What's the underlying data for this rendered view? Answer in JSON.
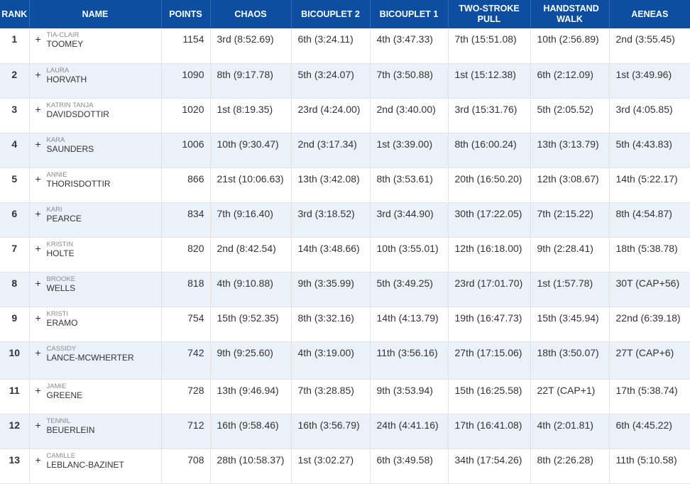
{
  "headers": [
    "RANK",
    "NAME",
    "POINTS",
    "CHAOS",
    "BICOUPLET 2",
    "BICOUPLET 1",
    "TWO-STROKE PULL",
    "HANDSTAND WALK",
    "AENEAS"
  ],
  "rows": [
    {
      "rank": "1",
      "first": "TIA-CLAIR",
      "last": "TOOMEY",
      "points": "1154",
      "events": [
        "3rd (8:52.69)",
        "6th (3:24.11)",
        "4th (3:47.33)",
        "7th (15:51.08)",
        "10th (2:56.89)",
        "2nd (3:55.45)"
      ]
    },
    {
      "rank": "2",
      "first": "LAURA",
      "last": "HORVATH",
      "points": "1090",
      "events": [
        "8th (9:17.78)",
        "5th (3:24.07)",
        "7th (3:50.88)",
        "1st (15:12.38)",
        "6th (2:12.09)",
        "1st (3:49.96)"
      ]
    },
    {
      "rank": "3",
      "first": "KATRIN TANJA",
      "last": "DAVIDSDOTTIR",
      "points": "1020",
      "events": [
        "1st (8:19.35)",
        "23rd (4:24.00)",
        "2nd (3:40.00)",
        "3rd (15:31.76)",
        "5th (2:05.52)",
        "3rd (4:05.85)"
      ]
    },
    {
      "rank": "4",
      "first": "KARA",
      "last": "SAUNDERS",
      "points": "1006",
      "events": [
        "10th (9:30.47)",
        "2nd (3:17.34)",
        "1st (3:39.00)",
        "8th (16:00.24)",
        "13th (3:13.79)",
        "5th (4:43.83)"
      ]
    },
    {
      "rank": "5",
      "first": "ANNIE",
      "last": "THORISDOTTIR",
      "points": "866",
      "events": [
        "21st (10:06.63)",
        "13th (3:42.08)",
        "8th (3:53.61)",
        "20th (16:50.20)",
        "12th (3:08.67)",
        "14th (5:22.17)"
      ]
    },
    {
      "rank": "6",
      "first": "KARI",
      "last": "PEARCE",
      "points": "834",
      "events": [
        "7th (9:16.40)",
        "3rd (3:18.52)",
        "3rd (3:44.90)",
        "30th (17:22.05)",
        "7th (2:15.22)",
        "8th (4:54.87)"
      ]
    },
    {
      "rank": "7",
      "first": "KRISTIN",
      "last": "HOLTE",
      "points": "820",
      "events": [
        "2nd (8:42.54)",
        "14th (3:48.66)",
        "10th (3:55.01)",
        "12th (16:18.00)",
        "9th (2:28.41)",
        "18th (5:38.78)"
      ]
    },
    {
      "rank": "8",
      "first": "BROOKE",
      "last": "WELLS",
      "points": "818",
      "events": [
        "4th (9:10.88)",
        "9th (3:35.99)",
        "5th (3:49.25)",
        "23rd (17:01.70)",
        "1st (1:57.78)",
        "30T (CAP+56)"
      ]
    },
    {
      "rank": "9",
      "first": "KRISTI",
      "last": "ERAMO",
      "points": "754",
      "events": [
        "15th (9:52.35)",
        "8th (3:32.16)",
        "14th (4:13.79)",
        "19th (16:47.73)",
        "15th (3:45.94)",
        "22nd (6:39.18)"
      ]
    },
    {
      "rank": "10",
      "first": "CASSIDY",
      "last": "LANCE-MCWHERTER",
      "points": "742",
      "events": [
        "9th (9:25.60)",
        "4th (3:19.00)",
        "11th (3:56.16)",
        "27th (17:15.06)",
        "18th (3:50.07)",
        "27T (CAP+6)"
      ]
    },
    {
      "rank": "11",
      "first": "JAMIE",
      "last": "GREENE",
      "points": "728",
      "events": [
        "13th (9:46.94)",
        "7th (3:28.85)",
        "9th (3:53.94)",
        "15th (16:25.58)",
        "22T (CAP+1)",
        "17th (5:38.74)"
      ]
    },
    {
      "rank": "12",
      "first": "TENNIL",
      "last": "BEUERLEIN",
      "points": "712",
      "events": [
        "16th (9:58.46)",
        "16th (3:56.79)",
        "24th (4:41.16)",
        "17th (16:41.08)",
        "4th (2:01.81)",
        "6th (4:45.22)"
      ]
    },
    {
      "rank": "13",
      "first": "CAMILLE",
      "last": "LEBLANC-BAZINET",
      "points": "708",
      "events": [
        "28th (10:58.37)",
        "1st (3:02.27)",
        "6th (3:49.58)",
        "34th (17:54.26)",
        "8th (2:26.28)",
        "11th (5:10.58)"
      ]
    }
  ]
}
